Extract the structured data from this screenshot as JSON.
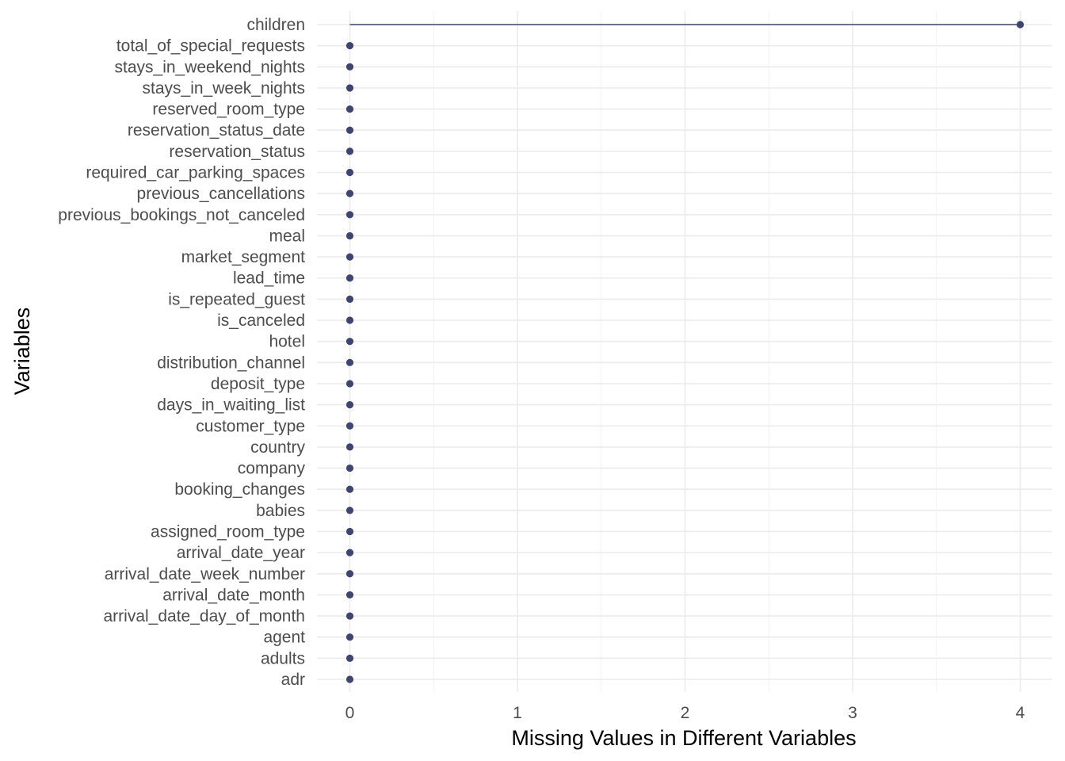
{
  "chart_data": {
    "type": "lollipop",
    "title": "",
    "xlabel": "Missing Values in Different Variables",
    "ylabel": "Variables",
    "xlim": [
      -0.2,
      4.2
    ],
    "x_ticks": [
      0,
      1,
      2,
      3,
      4
    ],
    "grid": true,
    "color": "#3f4471",
    "categories": [
      "children",
      "total_of_special_requests",
      "stays_in_weekend_nights",
      "stays_in_week_nights",
      "reserved_room_type",
      "reservation_status_date",
      "reservation_status",
      "required_car_parking_spaces",
      "previous_cancellations",
      "previous_bookings_not_canceled",
      "meal",
      "market_segment",
      "lead_time",
      "is_repeated_guest",
      "is_canceled",
      "hotel",
      "distribution_channel",
      "deposit_type",
      "days_in_waiting_list",
      "customer_type",
      "country",
      "company",
      "booking_changes",
      "babies",
      "assigned_room_type",
      "arrival_date_year",
      "arrival_date_week_number",
      "arrival_date_month",
      "arrival_date_day_of_month",
      "agent",
      "adults",
      "adr"
    ],
    "values": [
      4,
      0,
      0,
      0,
      0,
      0,
      0,
      0,
      0,
      0,
      0,
      0,
      0,
      0,
      0,
      0,
      0,
      0,
      0,
      0,
      0,
      0,
      0,
      0,
      0,
      0,
      0,
      0,
      0,
      0,
      0,
      0
    ]
  }
}
